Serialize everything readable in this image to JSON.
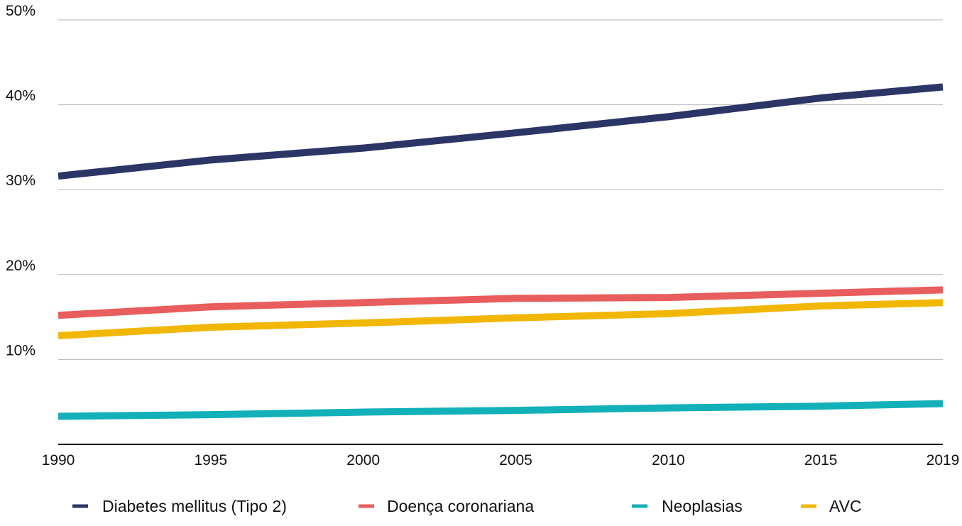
{
  "chart_data": {
    "type": "line",
    "title": "",
    "xlabel": "",
    "ylabel": "",
    "x": [
      1990,
      1995,
      2000,
      2005,
      2010,
      2015,
      2019
    ],
    "xlim": [
      1990,
      2019
    ],
    "ylim": [
      0,
      50
    ],
    "y_ticks": [
      10,
      20,
      30,
      40,
      50
    ],
    "y_tick_labels": [
      "10%",
      "20%",
      "30%",
      "40%",
      "50%"
    ],
    "x_tick_labels": [
      "1990",
      "1995",
      "2000",
      "2005",
      "2010",
      "2015",
      "2019"
    ],
    "grid": "horizontal",
    "legend_position": "bottom",
    "series": [
      {
        "name": "Diabetes mellitus (Tipo 2)",
        "color": "#2B3566",
        "values": [
          31.6,
          33.5,
          34.9,
          36.7,
          38.6,
          40.8,
          42.1
        ]
      },
      {
        "name": "Doença coronariana",
        "color": "#E85D5D",
        "values": [
          15.2,
          16.2,
          16.7,
          17.2,
          17.3,
          17.8,
          18.2
        ]
      },
      {
        "name": "Neoplasias",
        "color": "#12B0B8",
        "values": [
          3.3,
          3.5,
          3.8,
          4.0,
          4.3,
          4.5,
          4.8
        ]
      },
      {
        "name": "AVC",
        "color": "#F2B705",
        "values": [
          12.8,
          13.8,
          14.3,
          14.9,
          15.4,
          16.3,
          16.7
        ]
      }
    ]
  }
}
